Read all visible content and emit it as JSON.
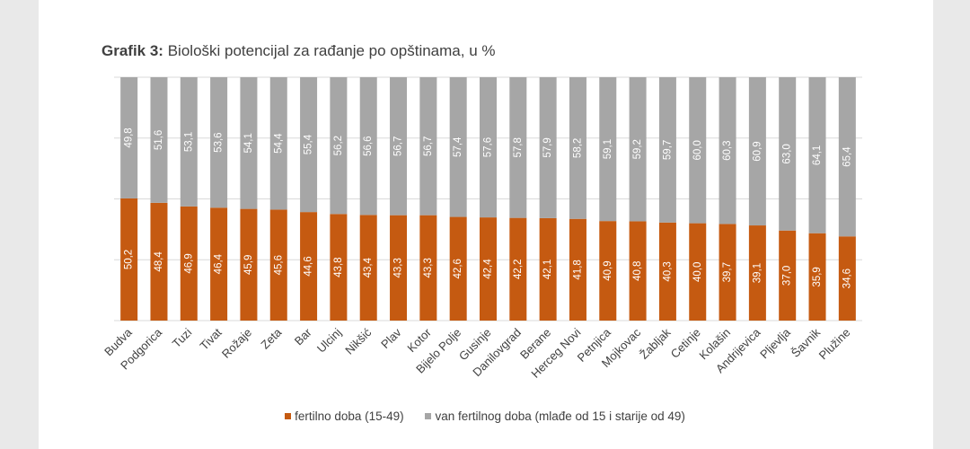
{
  "title": {
    "prefix": "Grafik 3:",
    "text": "Biološki potencijal za rađanje po opštinama, u %"
  },
  "colors": {
    "fertile": "#c55a11",
    "non_fertile": "#a6a6a6",
    "grid": "#d9d9d9",
    "label": "#ffffff",
    "axis_text": "#404040"
  },
  "chart_data": {
    "type": "bar",
    "stacked": true,
    "title": "Biološki potencijal za rađanje po opštinama, u %",
    "categories": [
      "Budva",
      "Podgorica",
      "Tuzi",
      "Tivat",
      "Rožaje",
      "Zeta",
      "Bar",
      "Ulcinj",
      "Nikšić",
      "Plav",
      "Kotor",
      "Bijelo Polje",
      "Gusinje",
      "Danilovgrad",
      "Berane",
      "Herceg Novi",
      "Petnjica",
      "Mojkovac",
      "Žabljak",
      "Cetinje",
      "Kolašin",
      "Andrijevica",
      "Pljevlja",
      "Šavnik",
      "Plužine"
    ],
    "series": [
      {
        "name": "fertilno doba (15-49)",
        "values": [
          50.2,
          48.4,
          46.9,
          46.4,
          45.9,
          45.6,
          44.6,
          43.8,
          43.4,
          43.3,
          43.3,
          42.6,
          42.4,
          42.2,
          42.1,
          41.8,
          40.9,
          40.8,
          40.3,
          40.0,
          39.7,
          39.1,
          37.0,
          35.9,
          34.6
        ]
      },
      {
        "name": "van fertilnog doba (mlađe od 15 i starije od 49)",
        "values": [
          49.8,
          51.6,
          53.1,
          53.6,
          54.1,
          54.4,
          55.4,
          56.2,
          56.6,
          56.7,
          56.7,
          57.4,
          57.6,
          57.8,
          57.9,
          58.2,
          59.1,
          59.2,
          59.7,
          60.0,
          60.3,
          60.9,
          63.0,
          64.1,
          65.4
        ]
      }
    ],
    "ylim": [
      0,
      100
    ],
    "grid": true,
    "legend": "bottom"
  }
}
